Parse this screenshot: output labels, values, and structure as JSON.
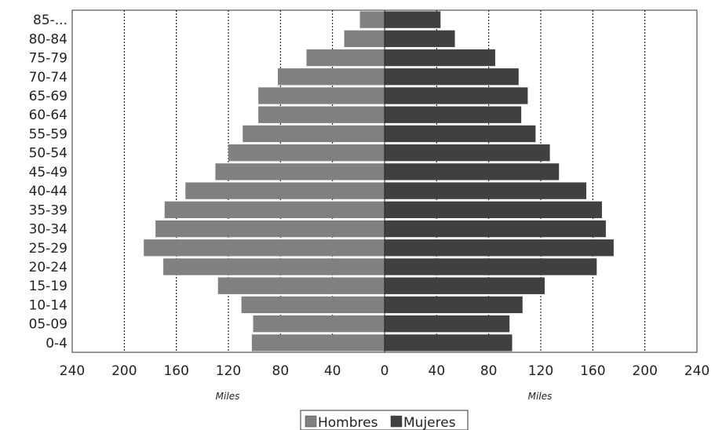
{
  "chart_data": {
    "type": "bar",
    "orientation": "horizontal-population-pyramid",
    "categories": [
      "0-4",
      "05-09",
      "10-14",
      "15-19",
      "20-24",
      "25-29",
      "30-34",
      "35-39",
      "40-44",
      "45-49",
      "50-54",
      "55-59",
      "60-64",
      "65-69",
      "70-74",
      "75-79",
      "80-84",
      "85-..."
    ],
    "series": [
      {
        "name": "Hombres",
        "color": "#808080",
        "values": [
          102,
          101,
          110,
          128,
          170,
          185,
          176,
          169,
          153,
          130,
          120,
          109,
          97,
          97,
          82,
          60,
          31,
          19
        ]
      },
      {
        "name": "Mujeres",
        "color": "#404040",
        "values": [
          98,
          96,
          106,
          123,
          163,
          176,
          170,
          167,
          155,
          134,
          127,
          116,
          105,
          110,
          103,
          85,
          54,
          43
        ]
      }
    ],
    "x_ticks": [
      "240",
      "200",
      "160",
      "120",
      "80",
      "40",
      "0",
      "40",
      "80",
      "120",
      "160",
      "200",
      "240"
    ],
    "xlim": [
      -240,
      240
    ],
    "x_unit_labels": [
      "Miles",
      "Miles"
    ],
    "gridlines": "dotted-vertical",
    "legend": {
      "position": "bottom-center",
      "entries": [
        "Hombres",
        "Mujeres"
      ]
    }
  }
}
